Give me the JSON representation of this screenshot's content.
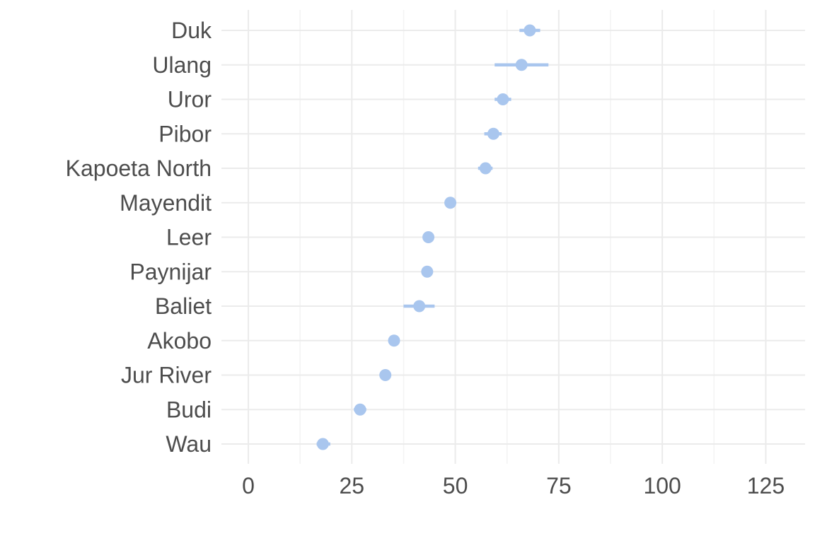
{
  "chart_data": {
    "type": "scatter",
    "title": "",
    "xlabel": "",
    "ylabel": "",
    "xlim": [
      -6.5,
      134.5
    ],
    "xticks": [
      0,
      25,
      50,
      75,
      100,
      125
    ],
    "tick_labels": [
      "0",
      "25",
      "50",
      "75",
      "100",
      "125"
    ],
    "grid": true,
    "legend": "none",
    "point_color": "#a9c6ee",
    "categories": [
      "Duk",
      "Ulang",
      "Uror",
      "Pibor",
      "Kapoeta North",
      "Mayendit",
      "Leer",
      "Paynijar",
      "Baliet",
      "Akobo",
      "Jur River",
      "Budi",
      "Wau"
    ],
    "values": [
      68.0,
      66.0,
      61.5,
      59.2,
      57.3,
      48.8,
      43.5,
      43.2,
      41.3,
      35.2,
      33.1,
      27.0,
      18.0
    ],
    "error_low": [
      65.5,
      59.5,
      59.5,
      57.0,
      55.5,
      47.5,
      42.8,
      42.5,
      37.5,
      34.0,
      32.0,
      25.5,
      16.5
    ],
    "error_high": [
      70.5,
      72.5,
      63.5,
      61.2,
      59.0,
      50.0,
      44.5,
      44.0,
      45.0,
      36.5,
      34.3,
      28.5,
      19.8
    ]
  }
}
